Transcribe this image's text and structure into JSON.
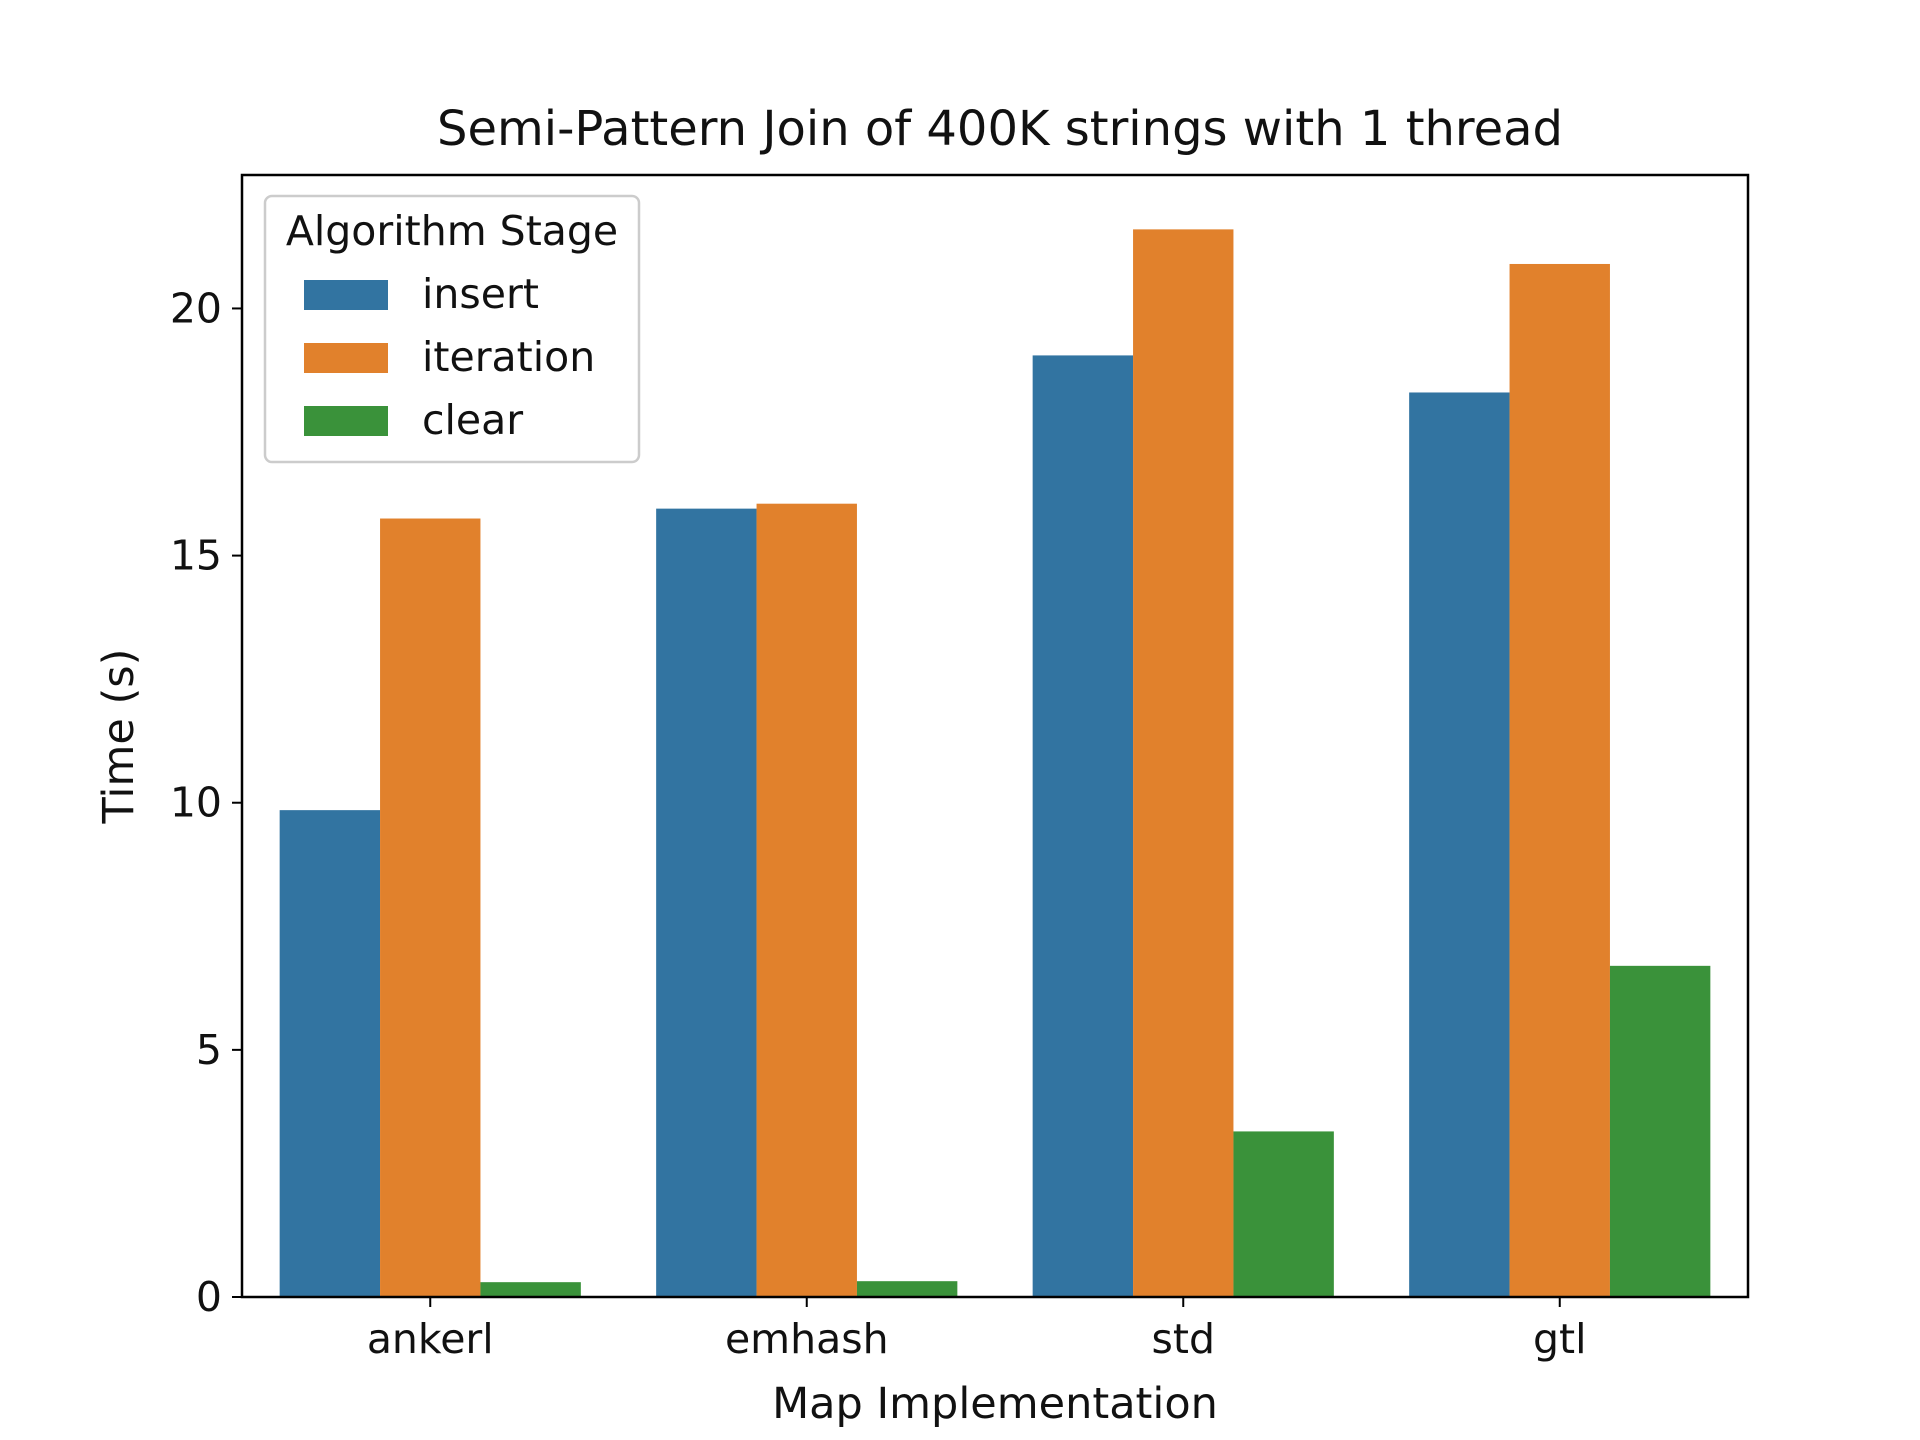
{
  "chart_data": {
    "type": "bar",
    "title": "Semi-Pattern Join of 400K strings with 1 thread",
    "xlabel": "Map Implementation",
    "ylabel": "Time (s)",
    "categories": [
      "ankerl",
      "emhash",
      "std",
      "gtl"
    ],
    "series": [
      {
        "name": "insert",
        "color": "#3274a1",
        "values": [
          9.85,
          15.95,
          19.05,
          18.3
        ]
      },
      {
        "name": "iteration",
        "color": "#e1812c",
        "values": [
          15.75,
          16.05,
          21.6,
          20.9
        ]
      },
      {
        "name": "clear",
        "color": "#3a923a",
        "values": [
          0.3,
          0.32,
          3.35,
          6.7
        ]
      }
    ],
    "ylim": [
      0,
      22.7
    ],
    "yticks": [
      0,
      5,
      10,
      15,
      20
    ],
    "grid": false,
    "legend": {
      "title": "Algorithm Stage",
      "placement": "top-left"
    }
  }
}
